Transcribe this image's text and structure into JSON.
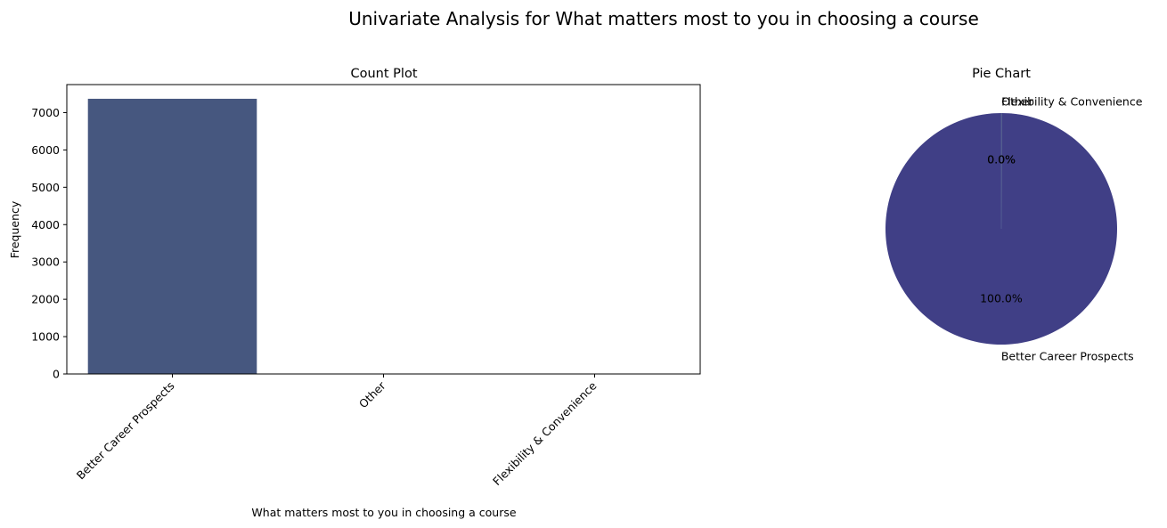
{
  "figure_title": "Univariate Analysis for What matters most to you in choosing a course",
  "colors": {
    "bar_better": "#46577f",
    "bar_other": "#3b6e8c",
    "bar_flex": "#5a9a4a",
    "pie_main": "#403f86",
    "pie_minor": "#3b6e8c",
    "axis": "#000000"
  },
  "chart_data": [
    {
      "type": "bar",
      "title": "Count Plot",
      "xlabel": "What matters most to you in choosing a course",
      "ylabel": "Frequency",
      "categories": [
        "Better Career Prospects",
        "Other",
        "Flexibility & Convenience"
      ],
      "values": [
        7370,
        1,
        2
      ],
      "ylim": [
        0,
        7750
      ],
      "yticks": [
        0,
        1000,
        2000,
        3000,
        4000,
        5000,
        6000,
        7000
      ],
      "ytick_labels": [
        "0",
        "1000",
        "2000",
        "3000",
        "4000",
        "5000",
        "6000",
        "7000"
      ],
      "grid": false,
      "legend": "none"
    },
    {
      "type": "pie",
      "title": "Pie Chart",
      "labels": [
        "Better Career Prospects",
        "Other",
        "Flexibility & Convenience"
      ],
      "values": [
        7370,
        1,
        2
      ],
      "pct_labels": [
        "100.0%",
        "0.0%",
        "0.0%"
      ]
    }
  ]
}
